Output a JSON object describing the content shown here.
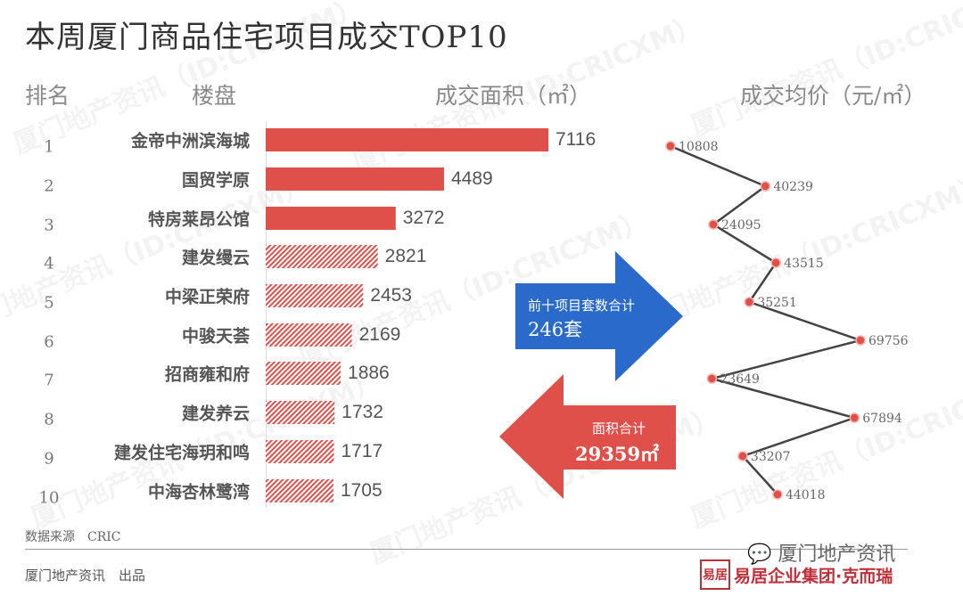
{
  "title": "本周厦门商品住宅项目成交TOP10",
  "headers": {
    "rank": "排名",
    "project": "楼盘",
    "area": "成交面积（㎡）",
    "price": "成交均价（元/㎡）"
  },
  "watermark": "厦门地产资讯（ID:CRICXM）",
  "colors": {
    "bar": "#e0504a",
    "line": "#444444",
    "point": "#e0504a",
    "arrow_blue": "#2a6acb",
    "arrow_red": "#e0504a"
  },
  "chart_data": [
    {
      "type": "bar",
      "orientation": "horizontal",
      "categories": [
        "金帝中洲滨海城",
        "国贸学原",
        "特房莱昂公馆",
        "建发缦云",
        "中梁正荣府",
        "中骏天荟",
        "招商雍和府",
        "建发养云",
        "建发住宅海玥和鸣",
        "中海杏林鹭湾"
      ],
      "ranks": [
        "1",
        "2",
        "3",
        "4",
        "5",
        "6",
        "7",
        "8",
        "9",
        "10"
      ],
      "values": [
        7116,
        4489,
        3272,
        2821,
        2453,
        2169,
        1886,
        1732,
        1717,
        1705
      ],
      "fill_styles": [
        "solid",
        "solid",
        "solid",
        "hatched",
        "hatched",
        "hatched",
        "hatched",
        "hatched",
        "hatched",
        "hatched"
      ],
      "title": "成交面积（㎡）"
    },
    {
      "type": "line",
      "orientation": "vertical",
      "categories": [
        "金帝中洲滨海城",
        "国贸学原",
        "特房莱昂公馆",
        "建发缦云",
        "中梁正荣府",
        "中骏天荟",
        "招商雍和府",
        "建发养云",
        "建发住宅海玥和鸣",
        "中海杏林鹭湾"
      ],
      "values": [
        10808,
        40239,
        24095,
        43515,
        35251,
        69756,
        23649,
        67894,
        33207,
        44018
      ],
      "title": "成交均价（元/㎡）"
    }
  ],
  "callouts": {
    "units_label": "前十项目套数合计",
    "units_value": "246套",
    "area_label": "面积合计",
    "area_value": "29359㎡"
  },
  "footer": {
    "source": "数据来源　CRIC",
    "producer": "厦门地产资讯　出品",
    "wechat_account": "厦门地产资讯",
    "brand": "易居企业集团·克而瑞",
    "seal": "易居"
  }
}
